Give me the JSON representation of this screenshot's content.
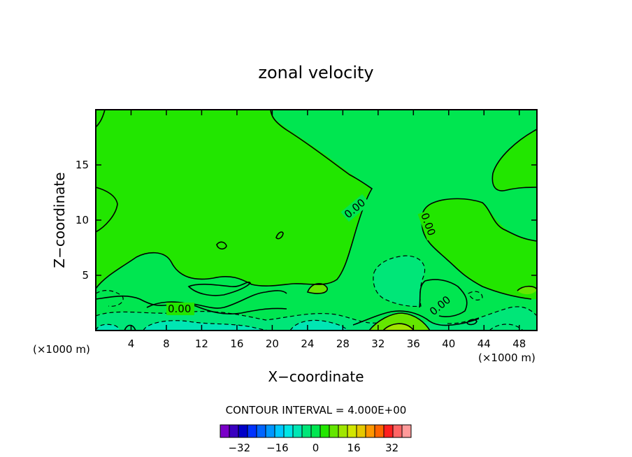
{
  "chart_data": {
    "type": "heatmap",
    "title": "zonal velocity",
    "xlabel": "X−coordinate",
    "ylabel": "Z−coordinate",
    "x_unit_left": "(×1000 m)",
    "x_unit_right": "(×1000 m)",
    "xlim": [
      0,
      50
    ],
    "ylim": [
      0,
      20
    ],
    "x_ticks": [
      4,
      8,
      12,
      16,
      20,
      24,
      28,
      32,
      36,
      40,
      44,
      48
    ],
    "y_ticks": [
      5,
      10,
      15
    ],
    "contour_interval_label": "CONTOUR INTERVAL = 4.000E+00",
    "contour_labels": [
      "0.00",
      "0.00",
      "0.00",
      "0.00"
    ],
    "colorbar": {
      "tick_labels": [
        "−32",
        "−16",
        "0",
        "16",
        "32"
      ],
      "tick_values": [
        -32,
        -16,
        0,
        16,
        32
      ],
      "bins": [
        -40,
        -36,
        -32,
        -28,
        -24,
        -20,
        -16,
        -12,
        -8,
        -4,
        0,
        4,
        8,
        12,
        16,
        20,
        24,
        28,
        32,
        36,
        40
      ],
      "colors": [
        "#7a00c8",
        "#3a00c0",
        "#0000c8",
        "#0032ff",
        "#0064ff",
        "#0096ff",
        "#00c8ff",
        "#00e6e6",
        "#00e6b4",
        "#00e678",
        "#00e650",
        "#22e600",
        "#64e600",
        "#a0e600",
        "#d2e600",
        "#e6c800",
        "#ff9600",
        "#ff6400",
        "#ff1e1e",
        "#ff6464",
        "#ff9a9a"
      ]
    },
    "fill_colors": {
      "bin_-12_-8": "#00e6b4",
      "bin_-8_-4": "#00e678",
      "bin_-4_0": "#00e650",
      "bin_0_4": "#22e600",
      "bin_4_8": "#64e600",
      "bin_8_12": "#a0e600"
    }
  }
}
